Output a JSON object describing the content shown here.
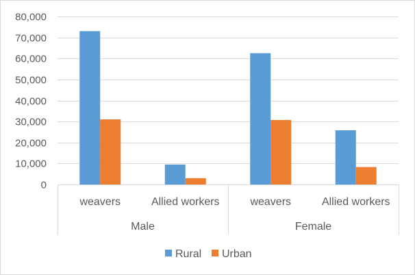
{
  "chart_data": {
    "type": "bar",
    "title": "",
    "xlabel": "",
    "ylabel": "",
    "ylim": [
      0,
      80000
    ],
    "y_ticks": [
      0,
      10000,
      20000,
      30000,
      40000,
      50000,
      60000,
      70000,
      80000
    ],
    "y_tick_labels": [
      "0",
      "10,000",
      "20,000",
      "30,000",
      "40,000",
      "50,000",
      "60,000",
      "70,000",
      "80,000"
    ],
    "grid": true,
    "legend_position": "bottom",
    "groups": [
      {
        "label": "Male",
        "categories": [
          "weavers",
          "Allied workers"
        ]
      },
      {
        "label": "Female",
        "categories": [
          "weavers",
          "Allied workers"
        ]
      }
    ],
    "categories": [
      "weavers",
      "Allied workers",
      "weavers",
      "Allied workers"
    ],
    "series": [
      {
        "name": "Rural",
        "color": "#5b9bd5",
        "values": [
          73000,
          9500,
          62500,
          25800
        ]
      },
      {
        "name": "Urban",
        "color": "#ed7d31",
        "values": [
          31000,
          3000,
          30700,
          8300
        ]
      }
    ]
  }
}
